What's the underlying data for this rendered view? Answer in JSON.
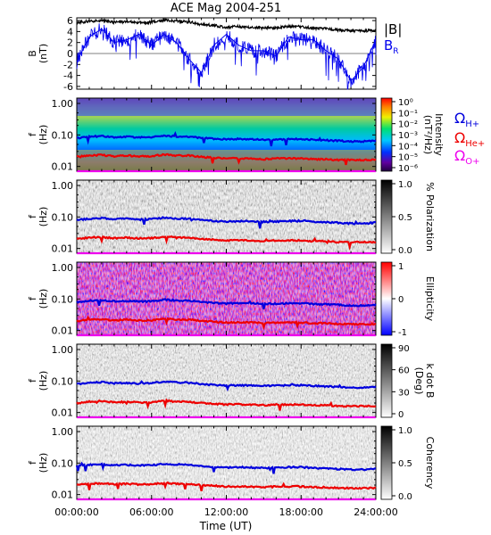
{
  "title": "ACE Mag 2004-251",
  "colors": {
    "magnitude": "#000000",
    "radial": "#0000ee",
    "h_plus": "#0000dd",
    "he_plus": "#ee0000",
    "o_plus": "#ee00ee"
  },
  "chart_data": [
    {
      "id": "field",
      "type": "line",
      "ylabel": "B (nT)",
      "ylim": [
        -6.5,
        6.5
      ],
      "yticks": [
        "6",
        "4",
        "2",
        "0",
        "-2",
        "-4",
        "-6"
      ],
      "series": [
        {
          "name": "|B|",
          "x_hours": [
            0,
            1,
            2,
            3,
            4,
            5,
            6,
            7,
            8,
            9,
            10,
            11,
            12,
            13,
            14,
            15,
            16,
            17,
            18,
            19,
            20,
            21,
            22,
            23,
            24
          ],
          "values": [
            5.6,
            5.9,
            6.0,
            5.7,
            5.8,
            5.6,
            5.7,
            6.1,
            5.9,
            5.8,
            5.3,
            5.1,
            4.8,
            4.9,
            4.8,
            4.6,
            4.7,
            4.9,
            4.9,
            4.6,
            4.5,
            4.3,
            4.1,
            4.1,
            4.3
          ]
        },
        {
          "name": "B_R",
          "x_hours": [
            0,
            1,
            2,
            3,
            4,
            5,
            6,
            7,
            8,
            9,
            10,
            11,
            12,
            13,
            14,
            15,
            16,
            17,
            18,
            19,
            20,
            21,
            22,
            23,
            24
          ],
          "values": [
            -1.5,
            3.0,
            4.5,
            2.0,
            2.5,
            3.5,
            1.5,
            3.5,
            2.0,
            -1.0,
            -3.5,
            1.5,
            3.5,
            1.5,
            0.5,
            0.5,
            -0.5,
            3.0,
            2.5,
            2.5,
            0.5,
            -1.0,
            -5.0,
            -2.5,
            2.5
          ]
        }
      ]
    },
    {
      "id": "intensity",
      "type": "heatmap",
      "ylabel": "f (Hz)",
      "yticks": [
        "1.00",
        "0.10",
        "0.01"
      ],
      "colorbar_label": "Intensity (nT²/Hz)",
      "colorbar_ticks": [
        "10⁰",
        "10⁻¹",
        "10⁻²",
        "10⁻³",
        "10⁻⁴",
        "10⁻⁵",
        "10⁻⁶"
      ]
    },
    {
      "id": "polarization",
      "type": "heatmap",
      "ylabel": "f (Hz)",
      "yticks": [
        "1.00",
        "0.10",
        "0.01"
      ],
      "colorbar_label": "% Polarization",
      "colorbar_ticks": [
        "1.0",
        "0.5",
        "0.0"
      ]
    },
    {
      "id": "ellipticity",
      "type": "heatmap",
      "ylabel": "f (Hz)",
      "yticks": [
        "1.00",
        "0.10",
        "0.01"
      ],
      "colorbar_label": "Ellipticity",
      "colorbar_ticks": [
        "1",
        "0",
        "-1"
      ]
    },
    {
      "id": "kdotb",
      "type": "heatmap",
      "ylabel": "f (Hz)",
      "yticks": [
        "1.00",
        "0.10",
        "0.01"
      ],
      "colorbar_label": "k dot B (Deg)",
      "colorbar_ticks": [
        "90",
        "60",
        "30",
        "0"
      ]
    },
    {
      "id": "coherency",
      "type": "heatmap",
      "ylabel": "f (Hz)",
      "yticks": [
        "1.00",
        "0.10",
        "0.01"
      ],
      "colorbar_label": "Coherency",
      "colorbar_ticks": [
        "1.0",
        "0.5",
        "0.0"
      ]
    }
  ],
  "gyrofrequencies": {
    "x_hours": [
      0,
      1,
      2,
      3,
      4,
      5,
      6,
      7,
      8,
      9,
      10,
      11,
      12,
      13,
      14,
      15,
      16,
      17,
      18,
      19,
      20,
      21,
      22,
      23,
      24
    ],
    "h_plus": [
      0.08,
      0.088,
      0.092,
      0.085,
      0.088,
      0.083,
      0.085,
      0.095,
      0.09,
      0.088,
      0.08,
      0.075,
      0.072,
      0.074,
      0.072,
      0.07,
      0.071,
      0.074,
      0.074,
      0.07,
      0.068,
      0.065,
      0.062,
      0.062,
      0.066
    ],
    "he_plus": [
      0.02,
      0.022,
      0.023,
      0.021,
      0.022,
      0.021,
      0.021,
      0.024,
      0.022,
      0.022,
      0.02,
      0.019,
      0.018,
      0.018,
      0.018,
      0.017,
      0.018,
      0.018,
      0.018,
      0.017,
      0.017,
      0.016,
      0.016,
      0.016,
      0.016
    ],
    "o_plus": [
      0.005,
      0.0055,
      0.0058,
      0.0053,
      0.0055,
      0.0052,
      0.0053,
      0.0059,
      0.0056,
      0.0055,
      0.005,
      0.0047,
      0.0045,
      0.0046,
      0.0045,
      0.0044,
      0.0044,
      0.0046,
      0.0046,
      0.0044,
      0.0043,
      0.0041,
      0.0039,
      0.0039,
      0.0041
    ]
  },
  "legend": {
    "magnitude": "|B|",
    "radial": "B",
    "radial_sub": "R",
    "h_plus": "Ω",
    "h_plus_sub": "H+",
    "he_plus": "Ω",
    "he_plus_sub": "He+",
    "o_plus": "Ω",
    "o_plus_sub": "O+"
  },
  "x_axis": {
    "label": "Time (UT)",
    "ticks": [
      "00:00:00",
      "06:00:00",
      "12:00:00",
      "18:00:00",
      "24:00:00"
    ],
    "range_hours": [
      0,
      24
    ]
  }
}
